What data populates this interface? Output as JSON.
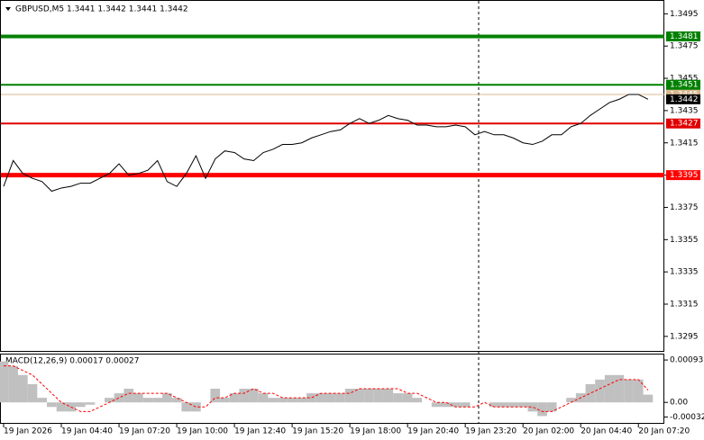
{
  "chart_data": [
    {
      "type": "line",
      "title": "GBPUSD,M5  1.3441 1.3442 1.3441 1.3442",
      "categories": [
        "19 Jan 2026",
        null,
        null,
        null,
        null,
        null,
        "19 Jan 04:40",
        null,
        null,
        null,
        null,
        null,
        "19 Jan 07:20",
        null,
        null,
        null,
        null,
        null,
        "19 Jan 10:00",
        null,
        null,
        null,
        null,
        null,
        "19 Jan 12:40",
        null,
        null,
        null,
        null,
        null,
        "19 Jan 15:20",
        null,
        null,
        null,
        null,
        null,
        "19 Jan 18:00",
        null,
        null,
        null,
        null,
        null,
        "19 Jan 20:40",
        null,
        null,
        null,
        null,
        null,
        "19 Jan 23:20",
        null,
        null,
        null,
        null,
        null,
        "20 Jan 02:00",
        null,
        null,
        null,
        null,
        null,
        "20 Jan 04:40",
        null,
        null,
        null,
        null,
        null,
        "20 Jan 07:20",
        null
      ],
      "series": [
        {
          "name": "GBPUSD",
          "color": "#000000",
          "values": [
            1.3388,
            1.3404,
            1.3396,
            1.3393,
            1.3391,
            1.3385,
            1.3387,
            1.3388,
            1.339,
            1.339,
            1.3393,
            1.3396,
            1.3402,
            1.3395,
            1.3396,
            1.3398,
            1.3404,
            1.3391,
            1.3388,
            1.3396,
            1.3407,
            1.3393,
            1.3405,
            1.341,
            1.3409,
            1.3405,
            1.3404,
            1.3409,
            1.3411,
            1.3414,
            1.3414,
            1.3415,
            1.3418,
            1.342,
            1.3422,
            1.3423,
            1.3427,
            1.343,
            1.3427,
            1.3429,
            1.3432,
            1.343,
            1.3429,
            1.3426,
            1.3426,
            1.3425,
            1.3425,
            1.3426,
            1.3425,
            1.342,
            1.3422,
            1.342,
            1.342,
            1.3418,
            1.3415,
            1.3414,
            1.3416,
            1.342,
            1.342,
            1.3425,
            1.3427,
            1.3432,
            1.3436,
            1.344,
            1.3442,
            1.3445,
            1.3445,
            1.3442
          ]
        }
      ],
      "ylim": [
        1.3286,
        1.3503
      ],
      "yticks": [
        1.3495,
        1.3475,
        1.3455,
        1.3435,
        1.3415,
        1.3395,
        1.3375,
        1.3355,
        1.3335,
        1.3315,
        1.3295
      ],
      "levels": [
        {
          "value": 1.3481,
          "color": "#008000",
          "width": 4
        },
        {
          "value": 1.3445,
          "color": "#d8b890",
          "width": 1
        },
        {
          "value": 1.3451,
          "color": "#008000",
          "width": 2
        },
        {
          "value": 1.3442,
          "color": "#000000",
          "width": 0
        },
        {
          "value": 1.3427,
          "color": "#e00000",
          "width": 2
        },
        {
          "value": 1.3395,
          "color": "#ff0000",
          "width": 5
        }
      ]
    },
    {
      "type": "macd",
      "title": "MACD(12,26,9) 0.00017 0.00027",
      "series": [
        {
          "name": "MACD",
          "color": "#c0c0c0",
          "values": [
            0.0009,
            0.0008,
            0.0006,
            0.0004,
            0.0001,
            -0.0001,
            -0.0002,
            -0.0002,
            -0.0001,
            -5e-05,
            0,
            0.0001,
            0.0002,
            0.0003,
            0.0002,
            0.0001,
            0.0001,
            0.0002,
            0.0001,
            -0.0002,
            -0.0002,
            0,
            0.0003,
            0.0001,
            0.0002,
            0.0003,
            0.0003,
            0.0002,
            0.0001,
            0.0001,
            0.0001,
            0.0001,
            0.0002,
            0.0002,
            0.0002,
            0.0002,
            0.0003,
            0.0003,
            0.0003,
            0.0003,
            0.0003,
            0.0002,
            0.0002,
            0.0001,
            0,
            -0.0001,
            -0.0001,
            -0.0001,
            -0.0001,
            0,
            0,
            -0.0001,
            -0.0001,
            -0.0001,
            -0.0001,
            -0.0002,
            -0.0003,
            -0.0002,
            0,
            0.0001,
            0.0002,
            0.0004,
            0.0005,
            0.0006,
            0.0006,
            0.0005,
            0.0005,
            0.00017
          ]
        },
        {
          "name": "Signal",
          "color": "#ff0000",
          "values": [
            0.0008,
            0.0008,
            0.0007,
            0.0006,
            0.0004,
            0.0002,
            0,
            -0.0001,
            -0.0002,
            -0.0002,
            -0.0001,
            0,
            0.0001,
            0.0002,
            0.0002,
            0.0002,
            0.0002,
            0.0002,
            0.0001,
            0,
            -0.0001,
            -0.0001,
            0.0001,
            0.0001,
            0.0002,
            0.0002,
            0.0003,
            0.0002,
            0.0002,
            0.0001,
            0.0001,
            0.0001,
            0.0001,
            0.0002,
            0.0002,
            0.0002,
            0.0002,
            0.0003,
            0.0003,
            0.0003,
            0.0003,
            0.0003,
            0.0002,
            0.0002,
            0.0001,
            0,
            0,
            -0.0001,
            -0.0001,
            -0.0001,
            0,
            -0.0001,
            -0.0001,
            -0.0001,
            -0.0001,
            -0.0001,
            -0.0002,
            -0.0002,
            -0.0001,
            0,
            0.0001,
            0.0002,
            0.0003,
            0.0004,
            0.0005,
            0.0005,
            0.0005,
            0.00027
          ]
        }
      ],
      "ylim": [
        -0.00045,
        0.00105
      ],
      "yticks": [
        0.00093,
        {
          "value": 0,
          "label": "0.00"
        },
        -0.00032
      ]
    }
  ]
}
